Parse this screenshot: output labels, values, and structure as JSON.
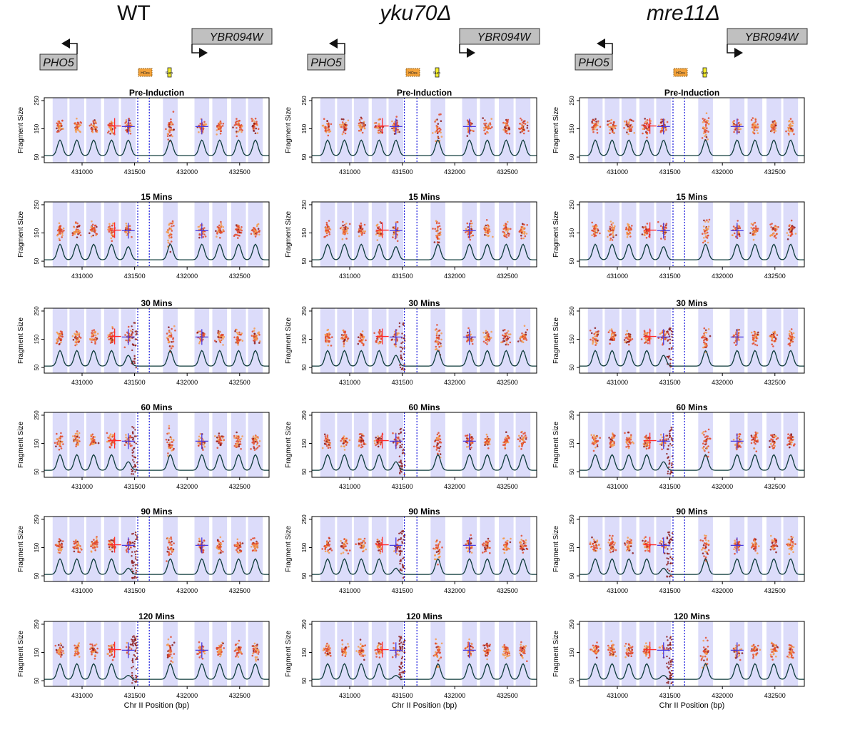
{
  "columns": [
    {
      "title": "WT",
      "italic": false,
      "gene_left": "PHO5",
      "gene_right": "YBR094W",
      "hocs_label": "HOcs",
      "sum_label": "Sum"
    },
    {
      "title": "yku70Δ",
      "italic": true,
      "gene_left": "PHO5",
      "gene_right": "YBR094W",
      "hocs_label": "HOcs",
      "sum_label": "Sum"
    },
    {
      "title": "mre11Δ",
      "italic": true,
      "gene_left": "PHO5",
      "gene_right": "YBR094W",
      "hocs_label": "HOcs",
      "sum_label": "Sum"
    }
  ],
  "colors": {
    "shade": "#dcdcfa",
    "red_point": "#e24a2c",
    "orange_point": "#f59a4a",
    "dark_point": "#8c1a1a",
    "cross_red": "#ff2a2a",
    "cross_blue": "#4a3adf",
    "occupancy_line": "#0f3b3b",
    "dotted_line": "#1a1add",
    "hocs_fill": "#f3a23a",
    "sum_fill": "#f5ee2a",
    "gene_fill": "#c0c0c0"
  },
  "chart_data": {
    "type": "scatter",
    "row_titles": [
      "Pre-Induction",
      "15 Mins",
      "30 Mins",
      "60 Mins",
      "90 Mins",
      "120 Mins"
    ],
    "xlabel": "Chr II Position (bp)",
    "ylabel": "Fragment Size",
    "xlim": [
      430640,
      432780
    ],
    "ylim": [
      30,
      260
    ],
    "xticks": [
      431000,
      431500,
      432000,
      432500
    ],
    "yticks": [
      50,
      150,
      250
    ],
    "ytick_labels": [
      "50",
      "150",
      "250"
    ],
    "nucleosome_centers": [
      430790,
      430950,
      431110,
      431280,
      431440,
      431840,
      432140,
      432310,
      432490,
      432650
    ],
    "dotted_lines": {
      "WT": [
        431530,
        431640
      ],
      "yku70Δ": [
        431520,
        431640
      ],
      "mre11Δ": [
        431530,
        431640
      ]
    },
    "red_cross": {
      "x": 431310,
      "y": 160
    },
    "blue_cross": {
      "x": 431440,
      "y": 158
    },
    "blue_cross_right": {
      "x": 432140,
      "y": 158
    }
  }
}
